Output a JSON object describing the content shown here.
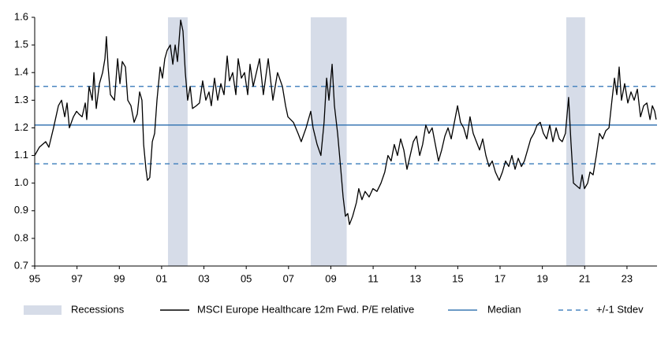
{
  "chart_data": {
    "type": "line",
    "recessions": {
      "name": "Recessions",
      "color": "#d6dce8",
      "periods": [
        [
          2001.3,
          2002.23
        ],
        [
          2008.05,
          2009.75
        ],
        [
          2020.13,
          2021.02
        ]
      ]
    },
    "median": {
      "name": "Median",
      "color": "#3b78b4",
      "value": 1.21
    },
    "stdev": {
      "name": "+/-1 Stdev",
      "color": "#4a86c0",
      "values": [
        1.07,
        1.35
      ]
    },
    "xlim": [
      1995,
      2024.42
    ],
    "ylim": [
      0.7,
      1.6
    ],
    "xticks": [
      {
        "value": 1995,
        "label": "95"
      },
      {
        "value": 1997,
        "label": "97"
      },
      {
        "value": 1999,
        "label": "99"
      },
      {
        "value": 2001,
        "label": "01"
      },
      {
        "value": 2003,
        "label": "03"
      },
      {
        "value": 2005,
        "label": "05"
      },
      {
        "value": 2007,
        "label": "07"
      },
      {
        "value": 2009,
        "label": "09"
      },
      {
        "value": 2011,
        "label": "11"
      },
      {
        "value": 2013,
        "label": "13"
      },
      {
        "value": 2015,
        "label": "15"
      },
      {
        "value": 2017,
        "label": "17"
      },
      {
        "value": 2019,
        "label": "19"
      },
      {
        "value": 2021,
        "label": "21"
      },
      {
        "value": 2023,
        "label": "23"
      }
    ],
    "yticks": [
      0.7,
      0.8,
      0.9,
      {
        "value": 1,
        "label": "1.0"
      },
      1.1,
      1.2,
      1.3,
      1.4,
      1.5,
      1.6
    ],
    "x": [
      1995.0,
      1995.22,
      1995.52,
      1995.67,
      1995.89,
      1996.12,
      1996.27,
      1996.42,
      1996.53,
      1996.64,
      1996.83,
      1996.98,
      1997.09,
      1997.24,
      1997.39,
      1997.46,
      1997.57,
      1997.72,
      1997.8,
      1997.91,
      1998.06,
      1998.21,
      1998.32,
      1998.39,
      1998.47,
      1998.58,
      1998.77,
      1998.92,
      1999.03,
      1999.14,
      1999.29,
      1999.4,
      1999.55,
      1999.7,
      1999.85,
      1999.96,
      2000.07,
      2000.15,
      2000.26,
      2000.33,
      2000.44,
      2000.56,
      2000.67,
      2000.78,
      2000.93,
      2001.04,
      2001.15,
      2001.26,
      2001.41,
      2001.53,
      2001.64,
      2001.75,
      2001.9,
      2002.01,
      2002.12,
      2002.23,
      2002.35,
      2002.46,
      2002.64,
      2002.79,
      2002.94,
      2003.09,
      2003.24,
      2003.35,
      2003.5,
      2003.65,
      2003.8,
      2003.95,
      2004.1,
      2004.21,
      2004.36,
      2004.51,
      2004.62,
      2004.77,
      2004.92,
      2005.07,
      2005.18,
      2005.33,
      2005.48,
      2005.63,
      2005.81,
      2006.04,
      2006.26,
      2006.48,
      2006.71,
      2006.86,
      2006.97,
      2007.23,
      2007.45,
      2007.6,
      2007.83,
      2008.05,
      2008.16,
      2008.35,
      2008.53,
      2008.68,
      2008.8,
      2008.91,
      2008.98,
      2009.06,
      2009.17,
      2009.32,
      2009.47,
      2009.58,
      2009.69,
      2009.8,
      2009.88,
      2010.03,
      2010.21,
      2010.32,
      2010.47,
      2010.62,
      2010.81,
      2010.99,
      2011.18,
      2011.37,
      2011.55,
      2011.7,
      2011.85,
      2012.0,
      2012.15,
      2012.3,
      2012.45,
      2012.6,
      2012.75,
      2012.9,
      2013.05,
      2013.2,
      2013.34,
      2013.49,
      2013.64,
      2013.79,
      2013.94,
      2014.09,
      2014.24,
      2014.39,
      2014.54,
      2014.69,
      2014.84,
      2014.99,
      2015.13,
      2015.28,
      2015.43,
      2015.58,
      2015.73,
      2015.88,
      2016.03,
      2016.18,
      2016.33,
      2016.48,
      2016.63,
      2016.78,
      2016.96,
      2017.11,
      2017.26,
      2017.41,
      2017.56,
      2017.71,
      2017.86,
      2018.01,
      2018.15,
      2018.3,
      2018.45,
      2018.6,
      2018.75,
      2018.9,
      2019.05,
      2019.2,
      2019.35,
      2019.5,
      2019.65,
      2019.8,
      2019.94,
      2020.09,
      2020.24,
      2020.35,
      2020.47,
      2020.62,
      2020.77,
      2020.88,
      2020.99,
      2021.14,
      2021.25,
      2021.4,
      2021.55,
      2021.7,
      2021.85,
      2022.0,
      2022.15,
      2022.29,
      2022.41,
      2022.52,
      2022.63,
      2022.74,
      2022.89,
      2023.04,
      2023.19,
      2023.34,
      2023.49,
      2023.64,
      2023.79,
      2023.94,
      2024.09,
      2024.2,
      2024.31,
      2024.38
    ],
    "series": [
      {
        "name": "MSCI Europe Healthcare 12m Fwd. P/E relative",
        "color": "#000000",
        "values": [
          1.1,
          1.13,
          1.15,
          1.13,
          1.2,
          1.28,
          1.3,
          1.24,
          1.29,
          1.2,
          1.24,
          1.26,
          1.25,
          1.24,
          1.29,
          1.23,
          1.35,
          1.3,
          1.4,
          1.27,
          1.36,
          1.4,
          1.45,
          1.53,
          1.42,
          1.32,
          1.3,
          1.45,
          1.36,
          1.44,
          1.42,
          1.3,
          1.28,
          1.22,
          1.25,
          1.33,
          1.3,
          1.14,
          1.05,
          1.01,
          1.02,
          1.15,
          1.18,
          1.3,
          1.42,
          1.38,
          1.45,
          1.48,
          1.5,
          1.43,
          1.5,
          1.44,
          1.59,
          1.55,
          1.4,
          1.3,
          1.35,
          1.27,
          1.28,
          1.29,
          1.37,
          1.3,
          1.33,
          1.28,
          1.38,
          1.3,
          1.36,
          1.32,
          1.46,
          1.37,
          1.4,
          1.32,
          1.45,
          1.38,
          1.4,
          1.32,
          1.43,
          1.35,
          1.4,
          1.45,
          1.32,
          1.45,
          1.3,
          1.4,
          1.35,
          1.28,
          1.24,
          1.22,
          1.18,
          1.15,
          1.2,
          1.26,
          1.2,
          1.14,
          1.1,
          1.22,
          1.38,
          1.3,
          1.36,
          1.43,
          1.28,
          1.18,
          1.05,
          0.95,
          0.88,
          0.89,
          0.85,
          0.88,
          0.93,
          0.98,
          0.94,
          0.97,
          0.95,
          0.98,
          0.97,
          1.0,
          1.04,
          1.1,
          1.08,
          1.14,
          1.1,
          1.16,
          1.12,
          1.05,
          1.1,
          1.15,
          1.17,
          1.1,
          1.14,
          1.21,
          1.18,
          1.2,
          1.14,
          1.08,
          1.12,
          1.17,
          1.2,
          1.16,
          1.22,
          1.28,
          1.22,
          1.2,
          1.16,
          1.24,
          1.18,
          1.15,
          1.12,
          1.16,
          1.1,
          1.06,
          1.08,
          1.04,
          1.01,
          1.04,
          1.08,
          1.06,
          1.1,
          1.05,
          1.09,
          1.06,
          1.08,
          1.12,
          1.16,
          1.18,
          1.21,
          1.22,
          1.18,
          1.16,
          1.21,
          1.15,
          1.2,
          1.16,
          1.15,
          1.18,
          1.31,
          1.15,
          1.0,
          0.99,
          0.98,
          1.03,
          0.98,
          1.0,
          1.04,
          1.03,
          1.1,
          1.18,
          1.16,
          1.19,
          1.2,
          1.3,
          1.38,
          1.32,
          1.42,
          1.3,
          1.36,
          1.29,
          1.33,
          1.3,
          1.34,
          1.24,
          1.28,
          1.29,
          1.23,
          1.28,
          1.26,
          1.23
        ]
      }
    ]
  }
}
